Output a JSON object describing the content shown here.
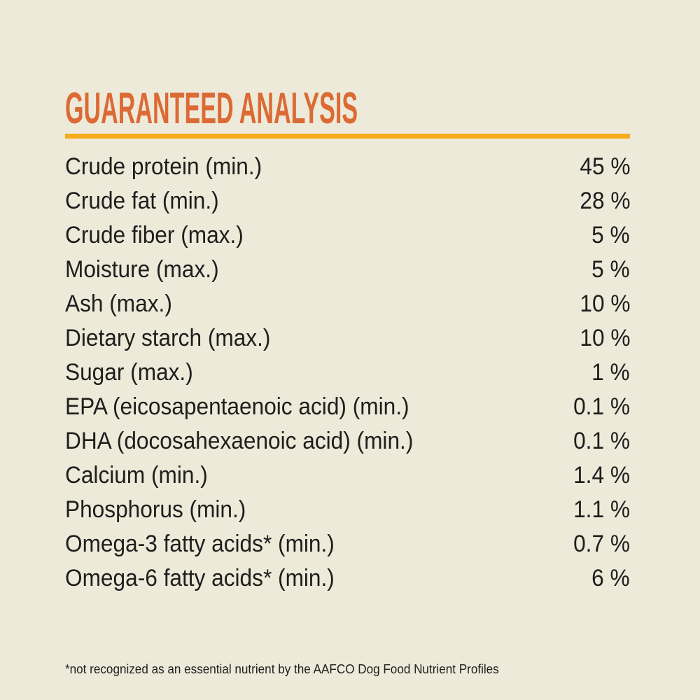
{
  "page": {
    "background_color": "#EDEADA",
    "title_color": "#DC6A34",
    "rule_color": "#F7AC1E",
    "text_color": "#1E1E1C"
  },
  "header": {
    "title": "GUARANTEED ANALYSIS"
  },
  "analysis": {
    "rows": [
      {
        "label": "Crude protein (min.)",
        "value": "45 %"
      },
      {
        "label": "Crude fat (min.)",
        "value": "28 %"
      },
      {
        "label": "Crude fiber (max.)",
        "value": "5 %"
      },
      {
        "label": "Moisture (max.)",
        "value": "5 %"
      },
      {
        "label": "Ash (max.)",
        "value": "10 %"
      },
      {
        "label": "Dietary starch (max.)",
        "value": "10 %"
      },
      {
        "label": "Sugar (max.)",
        "value": "1 %"
      },
      {
        "label": "EPA (eicosapentaenoic acid) (min.)",
        "value": "0.1 %"
      },
      {
        "label": "DHA (docosahexaenoic acid) (min.)",
        "value": "0.1 %"
      },
      {
        "label": "Calcium (min.)",
        "value": "1.4 %"
      },
      {
        "label": "Phosphorus (min.)",
        "value": "1.1 %"
      },
      {
        "label": "Omega-3 fatty acids* (min.)",
        "value": "0.7 %"
      },
      {
        "label": "Omega-6 fatty acids* (min.)",
        "value": "6 %"
      }
    ]
  },
  "footnote": "*not recognized as an essential nutrient by the AAFCO Dog Food Nutrient Profiles"
}
